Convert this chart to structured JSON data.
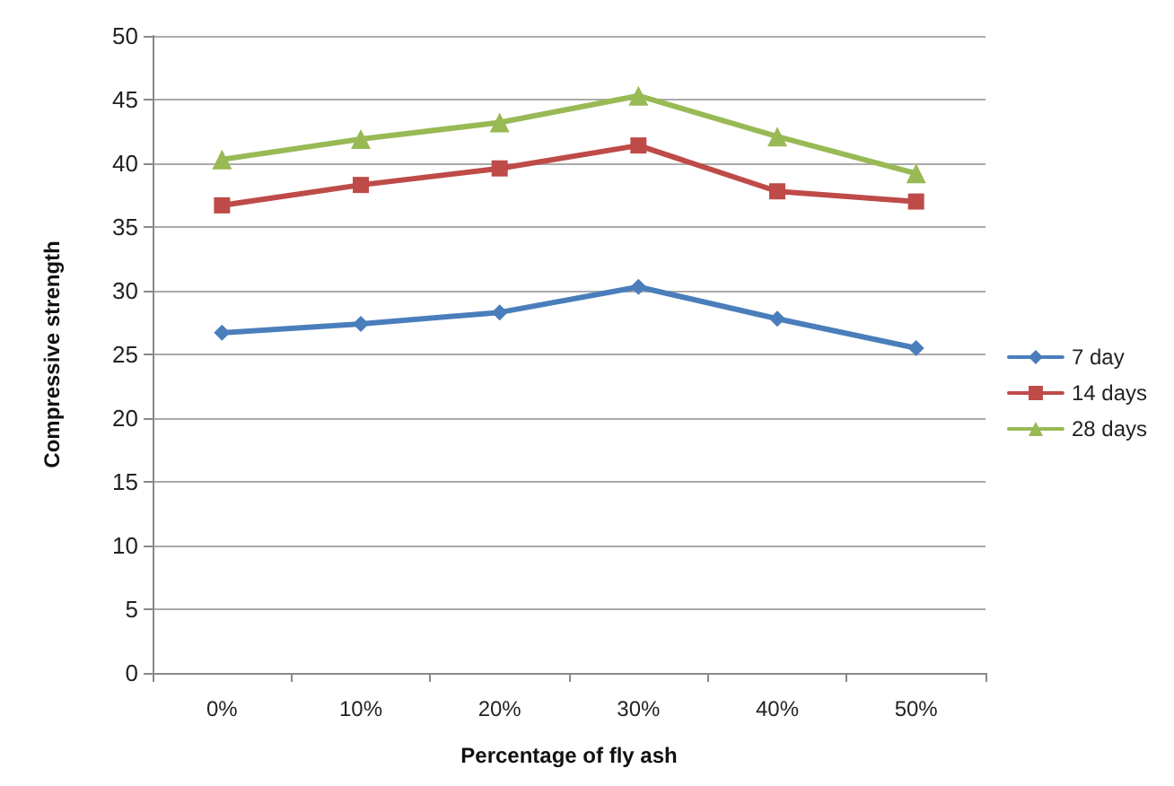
{
  "chart_data": {
    "type": "line",
    "xlabel": "Percentage of fly ash",
    "ylabel": "Compressive strength",
    "categories": [
      "0%",
      "10%",
      "20%",
      "30%",
      "40%",
      "50%"
    ],
    "series": [
      {
        "name": "7 day",
        "color": "#4a7ebb",
        "marker": "diamond",
        "values": [
          26.7,
          27.4,
          28.3,
          30.3,
          27.8,
          25.5
        ]
      },
      {
        "name": "14 days",
        "color": "#be4b48",
        "marker": "square",
        "values": [
          36.7,
          38.3,
          39.6,
          41.4,
          37.8,
          37.0
        ]
      },
      {
        "name": "28 days",
        "color": "#98b954",
        "marker": "triangle",
        "values": [
          40.3,
          41.9,
          43.2,
          45.3,
          42.1,
          39.2
        ]
      }
    ],
    "ylim": [
      0,
      50
    ],
    "yticks": [
      0,
      5,
      10,
      15,
      20,
      25,
      30,
      35,
      40,
      45,
      50
    ],
    "grid": "y",
    "legend": "right",
    "line_style": "solid"
  }
}
